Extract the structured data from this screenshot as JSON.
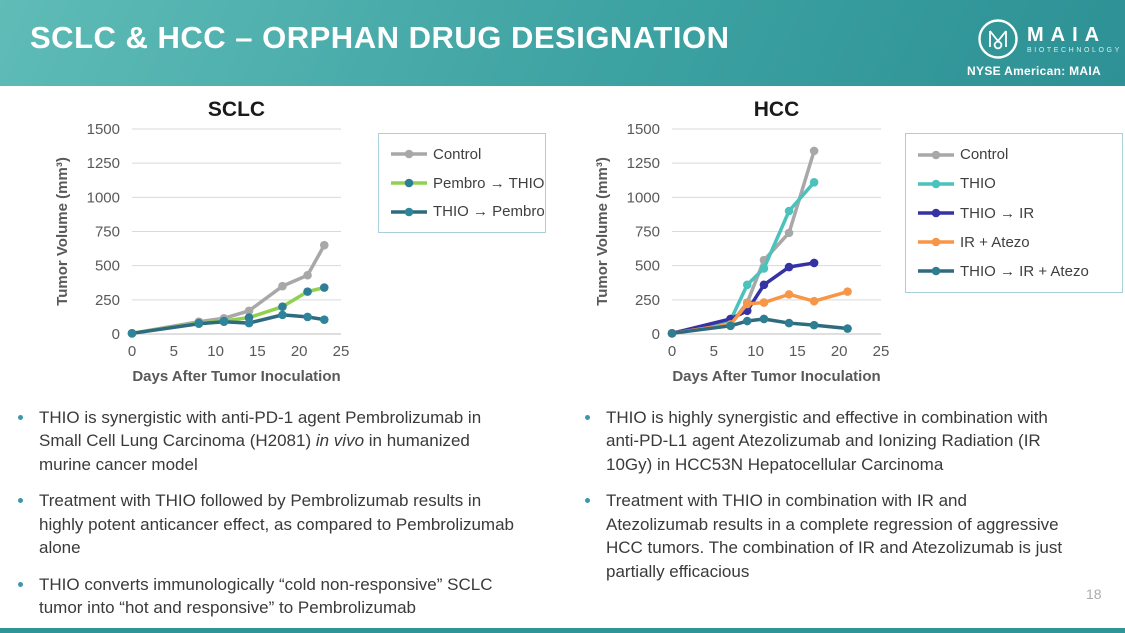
{
  "header": {
    "title": "SCLC & HCC – ORPHAN DRUG DESIGNATION",
    "ticker": "NYSE American: MAIA",
    "logo": {
      "brand": "MAIA",
      "sub": "BIOTECHNOLOGY"
    }
  },
  "colors": {
    "banner_teal_light": "#5fbcb7",
    "banner_teal_dark": "#2d9195",
    "legend_border": "#a9cfda",
    "gridline": "#d9d9d9",
    "axis_text": "#595959",
    "bullet_dot": "#3f96ac",
    "bottom_bar": "#2f9599"
  },
  "chart_data": [
    {
      "type": "line",
      "title": "SCLC",
      "xlabel": "Days After Tumor Inoculation",
      "ylabel": "Tumor Volume (mm³)",
      "xlim": [
        0,
        25
      ],
      "ylim": [
        0,
        1500
      ],
      "xticks": [
        0,
        5,
        10,
        15,
        20,
        25
      ],
      "yticks": [
        0,
        250,
        500,
        750,
        1000,
        1250,
        1500
      ],
      "grid": "horizontal",
      "legend_position": "right",
      "series": [
        {
          "name": "Control",
          "color": "#a8a8a8",
          "marker_color": "#a8a8a8",
          "x": [
            0,
            8,
            11,
            14,
            18,
            21,
            23
          ],
          "y": [
            5,
            90,
            115,
            170,
            350,
            430,
            650
          ]
        },
        {
          "name": "Pembro → THIO",
          "color": "#92d050",
          "marker_color": "#2e7f96",
          "x": [
            0,
            8,
            11,
            14,
            18,
            21,
            23
          ],
          "y": [
            5,
            80,
            95,
            120,
            200,
            310,
            340
          ]
        },
        {
          "name": "THIO → Pembro",
          "color": "#2f6b7e",
          "marker_color": "#2e849b",
          "x": [
            0,
            8,
            11,
            14,
            18,
            21,
            23
          ],
          "y": [
            5,
            75,
            90,
            80,
            140,
            125,
            105
          ]
        }
      ]
    },
    {
      "type": "line",
      "title": "HCC",
      "xlabel": "Days After Tumor Inoculation",
      "ylabel": "Tumor Volume (mm³)",
      "xlim": [
        0,
        25
      ],
      "ylim": [
        0,
        1500
      ],
      "xticks": [
        0,
        5,
        10,
        15,
        20,
        25
      ],
      "yticks": [
        0,
        250,
        500,
        750,
        1000,
        1250,
        1500
      ],
      "grid": "horizontal",
      "legend_position": "right",
      "series": [
        {
          "name": "Control",
          "color": "#a8a8a8",
          "marker_color": "#a8a8a8",
          "x": [
            0,
            7,
            9,
            11,
            14,
            17
          ],
          "y": [
            5,
            70,
            230,
            540,
            740,
            1340
          ]
        },
        {
          "name": "THIO",
          "color": "#4cc2bd",
          "marker_color": "#4cc2bd",
          "x": [
            0,
            7,
            9,
            11,
            14,
            17
          ],
          "y": [
            5,
            100,
            360,
            480,
            900,
            1110
          ]
        },
        {
          "name": "THIO → IR",
          "color": "#3533a3",
          "marker_color": "#3533a3",
          "x": [
            0,
            7,
            9,
            11,
            14,
            17
          ],
          "y": [
            5,
            110,
            170,
            360,
            490,
            520
          ]
        },
        {
          "name": "IR + Atezo",
          "color": "#f79646",
          "marker_color": "#f79646",
          "x": [
            0,
            7,
            9,
            11,
            14,
            17,
            21
          ],
          "y": [
            5,
            70,
            220,
            230,
            290,
            240,
            310
          ]
        },
        {
          "name": "THIO → IR + Atezo",
          "color": "#2f6b7e",
          "marker_color": "#2f7d91",
          "x": [
            0,
            7,
            9,
            11,
            14,
            17,
            21
          ],
          "y": [
            5,
            60,
            95,
            110,
            80,
            65,
            40
          ]
        }
      ]
    }
  ],
  "bullets_left": [
    {
      "pre": "THIO is synergistic with anti-PD-1 agent Pembrolizumab in Small Cell Lung Carcinoma (H2081) ",
      "italic": "in vivo",
      "post": " in humanized murine cancer model"
    },
    {
      "text": "Treatment with THIO followed by Pembrolizumab results in highly potent anticancer effect, as compared to Pembrolizumab alone"
    },
    {
      "text": "THIO converts immunologically “cold non-responsive” SCLC tumor into “hot and responsive” to Pembrolizumab"
    }
  ],
  "bullets_right": [
    {
      "text": "THIO is highly synergistic and effective in combination with anti-PD-L1 agent Atezolizumab and Ionizing Radiation (IR 10Gy) in HCC53N Hepatocellular Carcinoma"
    },
    {
      "text": "Treatment with THIO in combination with IR and Atezolizumab results in a complete regression of aggressive HCC tumors. The combination of IR and Atezolizumab is just partially efficacious"
    }
  ],
  "footer": {
    "page_number": "18"
  }
}
